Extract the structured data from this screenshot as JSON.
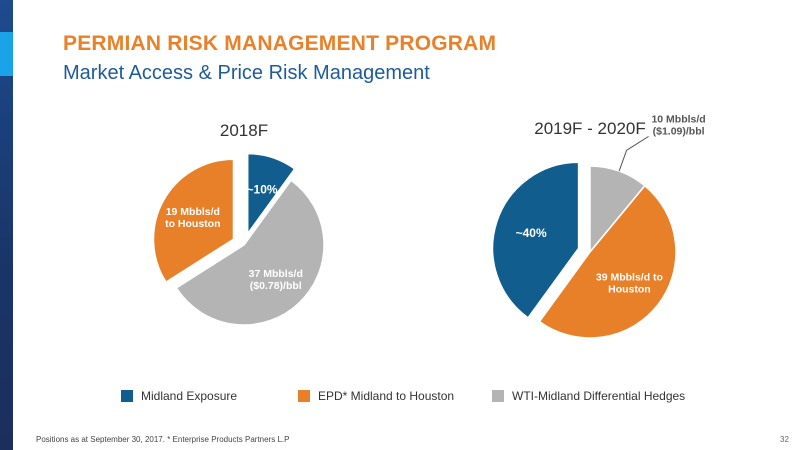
{
  "slide": {
    "title": "PERMIAN RISK MANAGEMENT PROGRAM",
    "subtitle": "Market Access & Price Risk Management",
    "footer_note": "Positions as at September 30, 2017. * Enterprise Products Partners L.P",
    "page_number": "32"
  },
  "colors": {
    "blue": "#115e8e",
    "orange": "#e8802a",
    "gray": "#b4b4b4",
    "title_orange": "#e8812a",
    "subtitle_blue": "#1e5b9a"
  },
  "legend": [
    {
      "label": "Midland Exposure",
      "color_key": "blue"
    },
    {
      "label": "EPD* Midland to Houston",
      "color_key": "orange"
    },
    {
      "label": "WTI-Midland Differential Hedges",
      "color_key": "gray"
    }
  ],
  "chart_data": [
    {
      "type": "pie",
      "title": "2018F",
      "slices": [
        {
          "series": "Midland Exposure",
          "value": 10,
          "label": [
            "~10%"
          ],
          "exploded": true
        },
        {
          "series": "WTI-Midland Differential Hedges",
          "value": 56,
          "label": [
            "37 Mbbls/d",
            "($0.78)/bbl"
          ],
          "exploded": false
        },
        {
          "series": "EPD* Midland to Houston",
          "value": 34,
          "label": [
            "19 Mbbls/d",
            "to Houston"
          ],
          "exploded": true
        }
      ]
    },
    {
      "type": "pie",
      "title": "2019F - 2020F",
      "slices": [
        {
          "series": "WTI-Midland Differential Hedges",
          "value": 11,
          "label": [
            "10 Mbbls/d",
            "($1.09)/bbl"
          ],
          "exploded": false,
          "label_outside": true
        },
        {
          "series": "EPD* Midland to Houston",
          "value": 49,
          "label": [
            "39 Mbbls/d to",
            "Houston"
          ],
          "exploded": false
        },
        {
          "series": "Midland Exposure",
          "value": 40,
          "label": [
            "~40%"
          ],
          "exploded": true
        }
      ]
    }
  ]
}
